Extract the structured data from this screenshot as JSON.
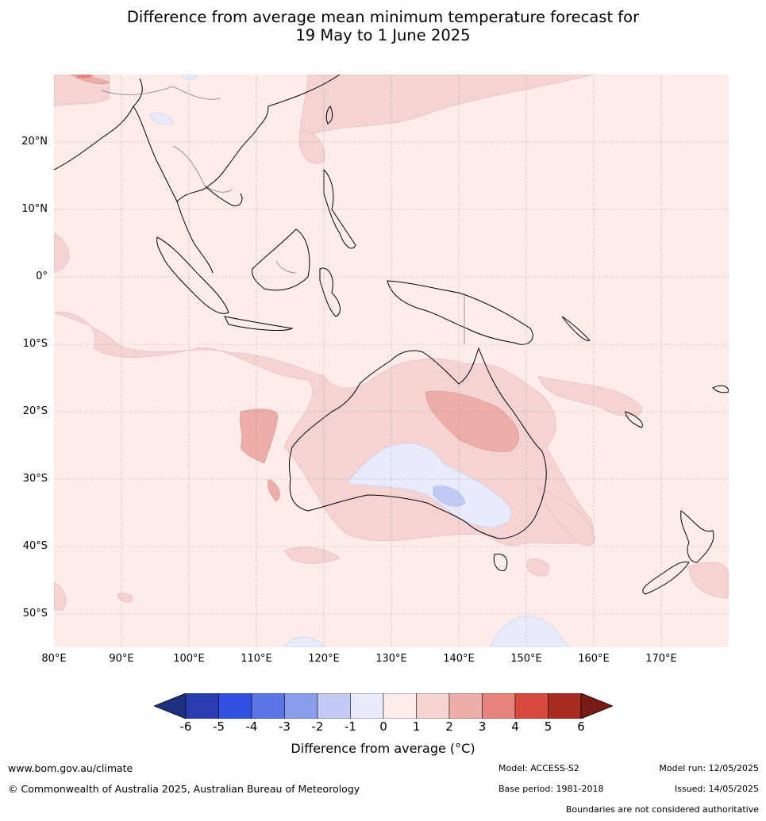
{
  "title": {
    "line1": "Difference from average mean minimum temperature forecast for",
    "line2": "19 May to 1 June 2025"
  },
  "map": {
    "region": "Indo-Pacific / Australia",
    "lat_labels": [
      "20°N",
      "10°N",
      "0°",
      "10°S",
      "20°S",
      "30°S",
      "40°S",
      "50°S"
    ],
    "lon_labels": [
      "80°E",
      "90°E",
      "100°E",
      "110°E",
      "120°E",
      "130°E",
      "140°E",
      "150°E",
      "160°E",
      "170°E"
    ],
    "lat_range": [
      -55,
      30
    ],
    "lon_range": [
      80,
      180
    ]
  },
  "colorbar": {
    "ticks": [
      "-6",
      "-5",
      "-4",
      "-3",
      "-2",
      "-1",
      "0",
      "1",
      "2",
      "3",
      "4",
      "5",
      "6"
    ],
    "colors": [
      "#1f2f80",
      "#2a3db0",
      "#3050e0",
      "#5a75e6",
      "#8a9ded",
      "#c3caf4",
      "#e8ebfb",
      "#fdecea",
      "#f5d3d2",
      "#edaeaa",
      "#e6847c",
      "#d94a3e",
      "#a82b22",
      "#7a1a17"
    ],
    "label": "Difference from average (°C)"
  },
  "footer": {
    "website": "www.bom.gov.au/climate",
    "copyright": "© Commonwealth of Australia 2025, Australian Bureau of Meteorology",
    "model": "Model: ACCESS-S2",
    "base_period": "Base period: 1981-2018",
    "model_run": "Model run: 12/05/2025",
    "issued": "Issued: 14/05/2025",
    "disclaimer": "Boundaries are not considered authoritative"
  }
}
